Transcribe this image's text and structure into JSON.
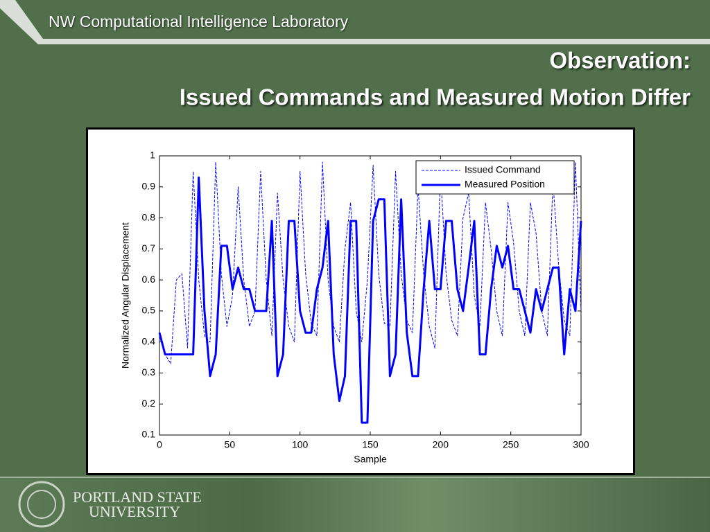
{
  "header": {
    "lab": "NW Computational Intelligence Laboratory",
    "title_line1": "Observation:",
    "title_line2": "Issued Commands and Measured Motion Differ"
  },
  "footer": {
    "line1": "PORTLAND STATE",
    "line2": "UNIVERSITY"
  },
  "chart_data": {
    "type": "line",
    "xlabel": "Sample",
    "ylabel": "Normalized Angular Displacement",
    "x": [
      0,
      4,
      8,
      12,
      16,
      20,
      24,
      28,
      32,
      36,
      40,
      44,
      48,
      52,
      56,
      60,
      64,
      68,
      72,
      76,
      80,
      84,
      88,
      92,
      96,
      100,
      104,
      108,
      112,
      116,
      120,
      124,
      128,
      132,
      136,
      140,
      144,
      148,
      152,
      156,
      160,
      164,
      168,
      172,
      176,
      180,
      184,
      188,
      192,
      196,
      200,
      204,
      208,
      212,
      216,
      220,
      224,
      228,
      232,
      236,
      240,
      244,
      248,
      252,
      256,
      260,
      264,
      268,
      272,
      276,
      280,
      284,
      288,
      292,
      296,
      300
    ],
    "series": [
      {
        "name": "Issued Command",
        "color": "#0000ff",
        "linestyle": "dashed",
        "values": [
          0.43,
          0.36,
          0.33,
          0.6,
          0.62,
          0.38,
          0.95,
          0.6,
          0.42,
          0.4,
          0.98,
          0.62,
          0.45,
          0.55,
          0.9,
          0.6,
          0.45,
          0.5,
          0.95,
          0.6,
          0.42,
          0.88,
          0.6,
          0.45,
          0.4,
          0.95,
          0.62,
          0.46,
          0.42,
          0.98,
          0.6,
          0.45,
          0.4,
          0.7,
          0.85,
          0.5,
          0.4,
          0.6,
          0.97,
          0.62,
          0.46,
          0.45,
          0.95,
          0.62,
          0.47,
          0.43,
          0.9,
          0.62,
          0.45,
          0.38,
          0.95,
          0.62,
          0.47,
          0.42,
          0.8,
          0.88,
          0.55,
          0.45,
          0.85,
          0.7,
          0.5,
          0.42,
          0.85,
          0.72,
          0.5,
          0.42,
          0.85,
          0.75,
          0.5,
          0.42,
          0.92,
          0.65,
          0.47,
          0.42,
          0.98,
          0.5
        ]
      },
      {
        "name": "Measured Position",
        "color": "#0000ff",
        "linestyle": "solid",
        "values": [
          0.43,
          0.36,
          0.36,
          0.36,
          0.36,
          0.36,
          0.36,
          0.93,
          0.5,
          0.29,
          0.36,
          0.71,
          0.71,
          0.57,
          0.64,
          0.57,
          0.57,
          0.5,
          0.5,
          0.5,
          0.79,
          0.29,
          0.36,
          0.79,
          0.79,
          0.5,
          0.43,
          0.43,
          0.57,
          0.64,
          0.79,
          0.36,
          0.21,
          0.29,
          0.79,
          0.79,
          0.14,
          0.14,
          0.79,
          0.86,
          0.86,
          0.29,
          0.36,
          0.86,
          0.43,
          0.29,
          0.29,
          0.57,
          0.79,
          0.57,
          0.57,
          0.79,
          0.79,
          0.57,
          0.5,
          0.64,
          0.79,
          0.36,
          0.36,
          0.57,
          0.71,
          0.64,
          0.71,
          0.57,
          0.57,
          0.5,
          0.43,
          0.57,
          0.5,
          0.57,
          0.64,
          0.64,
          0.36,
          0.57,
          0.5,
          0.79
        ]
      }
    ],
    "xlim": [
      0,
      300
    ],
    "xticks": [
      0,
      50,
      100,
      150,
      200,
      250,
      300
    ],
    "ylim": [
      0.1,
      1
    ],
    "yticks": [
      0.1,
      0.2,
      0.3,
      0.4,
      0.5,
      0.6,
      0.7,
      0.8,
      0.9,
      1
    ],
    "legend": "upper right"
  }
}
